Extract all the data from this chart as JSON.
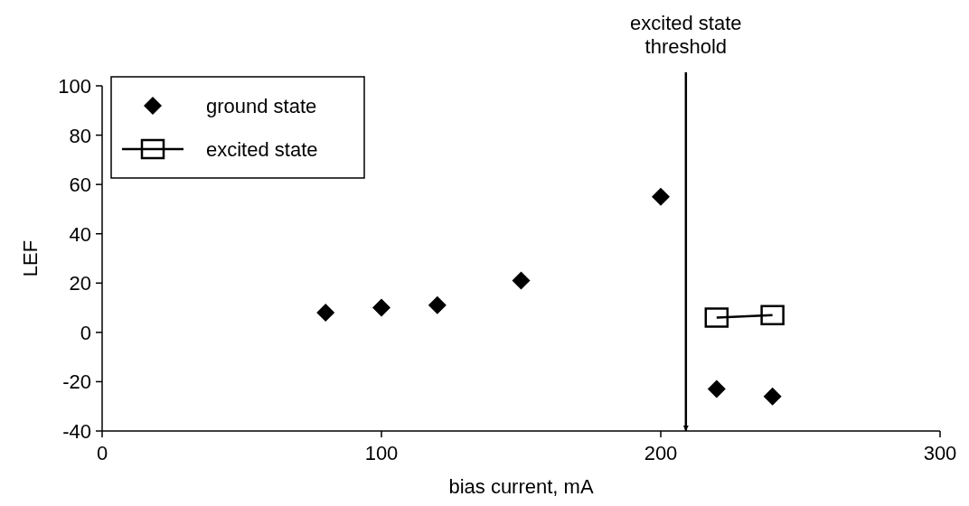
{
  "chart_data": {
    "type": "scatter",
    "xlabel": "bias current, mA",
    "ylabel": "LEF",
    "xlim": [
      0,
      300
    ],
    "xticks": [
      0,
      100,
      200,
      300
    ],
    "ylim": [
      -40,
      100
    ],
    "yticks": [
      -40,
      -20,
      0,
      20,
      40,
      60,
      80,
      100
    ],
    "grid": false,
    "legend": "top left",
    "series": [
      {
        "name": "ground state",
        "type": "scatter",
        "marker": "diamond",
        "color": "#000000",
        "x": [
          80,
          100,
          120,
          150,
          200,
          220,
          240
        ],
        "values": [
          8,
          10,
          11,
          21,
          55,
          -23,
          -26
        ]
      },
      {
        "name": "excited state",
        "type": "line",
        "marker": "square",
        "color": "#000000",
        "x": [
          220,
          240
        ],
        "values": [
          6,
          7
        ]
      }
    ],
    "ref_lines": [
      {
        "axis": "x",
        "value": 209,
        "label": "excited state\nthreshold",
        "color": "#000000"
      }
    ]
  }
}
